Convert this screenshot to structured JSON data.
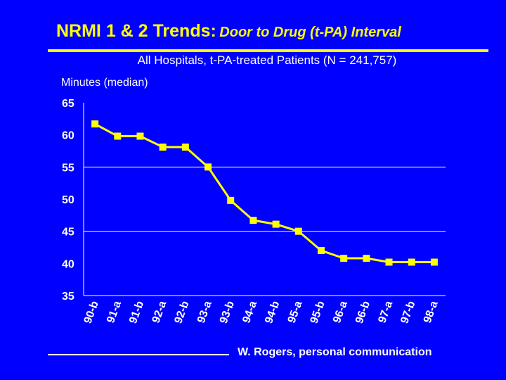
{
  "title": {
    "main": "NRMI 1 & 2 Trends:",
    "sub": "Door to Drug (t-PA) Interval"
  },
  "subtitle": "All Hospitals, t-PA-treated Patients (N = 241,757)",
  "footer": "W. Rogers, personal communication",
  "colors": {
    "background": "#0000ff",
    "title": "#ffff00",
    "series": "#ffff00",
    "text": "#ffffff"
  },
  "chart_data": {
    "type": "line",
    "ylabel": "Minutes (median)",
    "xlabel": "",
    "categories": [
      "90-b",
      "91-a",
      "91-b",
      "92-a",
      "92-b",
      "93-a",
      "93-b",
      "94-a",
      "94-b",
      "95-a",
      "95-b",
      "96-a",
      "96-b",
      "97-a",
      "97-b",
      "98-a"
    ],
    "series": [
      {
        "values": [
          61.7,
          59.8,
          59.8,
          58.1,
          58.1,
          55.0,
          49.8,
          46.7,
          46.1,
          45.0,
          42.0,
          40.8,
          40.8,
          40.2,
          40.2,
          40.2
        ]
      }
    ],
    "ylim": [
      35,
      65
    ],
    "yticks": [
      35,
      40,
      45,
      50,
      55,
      60,
      65
    ],
    "gridlines": [
      45,
      55
    ],
    "grid": true,
    "marker": "square"
  }
}
